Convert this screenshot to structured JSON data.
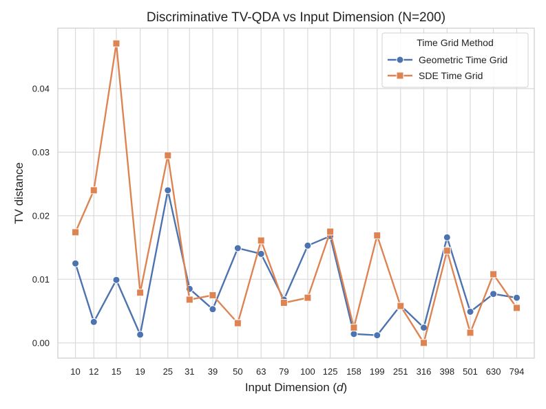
{
  "chart_data": {
    "type": "line",
    "title": "Discriminative TV-QDA vs Input Dimension (N=200)",
    "xlabel_prefix": "Input Dimension (",
    "xlabel_var": "d",
    "xlabel_suffix": ")",
    "ylabel": "TV distance",
    "categories": [
      "10",
      "12",
      "15",
      "19",
      "25",
      "31",
      "39",
      "50",
      "63",
      "79",
      "100",
      "125",
      "158",
      "199",
      "251",
      "316",
      "398",
      "501",
      "630",
      "794"
    ],
    "category_values": [
      10,
      12,
      15,
      19,
      25,
      31,
      39,
      50,
      63,
      79,
      100,
      125,
      158,
      199,
      251,
      316,
      398,
      501,
      630,
      794
    ],
    "x_scale": "log",
    "xlim": [
      8.4,
      945
    ],
    "ylim": [
      -0.0024,
      0.0495
    ],
    "yticks": [
      0.0,
      0.01,
      0.02,
      0.03,
      0.04
    ],
    "ytick_labels": [
      "0.00",
      "0.01",
      "0.02",
      "0.03",
      "0.04"
    ],
    "grid": true,
    "legend": {
      "title": "Time Grid Method",
      "position": "top-right"
    },
    "series": [
      {
        "name": "Geometric Time Grid",
        "color": "#4c72b0",
        "marker": "circle",
        "values": [
          0.0125,
          0.0033,
          0.0099,
          0.0013,
          0.024,
          0.0085,
          0.0053,
          0.0149,
          0.014,
          0.0068,
          0.0153,
          0.0168,
          0.0014,
          0.0012,
          0.0059,
          0.0024,
          0.0166,
          0.0049,
          0.0077,
          0.0071
        ]
      },
      {
        "name": "SDE Time Grid",
        "color": "#dd8452",
        "marker": "square",
        "values": [
          0.0174,
          0.024,
          0.0471,
          0.0079,
          0.0295,
          0.0068,
          0.0075,
          0.0031,
          0.0161,
          0.0063,
          0.0071,
          0.0175,
          0.0024,
          0.0169,
          0.0058,
          0.0,
          0.0145,
          0.0016,
          0.0108,
          0.0055
        ]
      }
    ]
  }
}
